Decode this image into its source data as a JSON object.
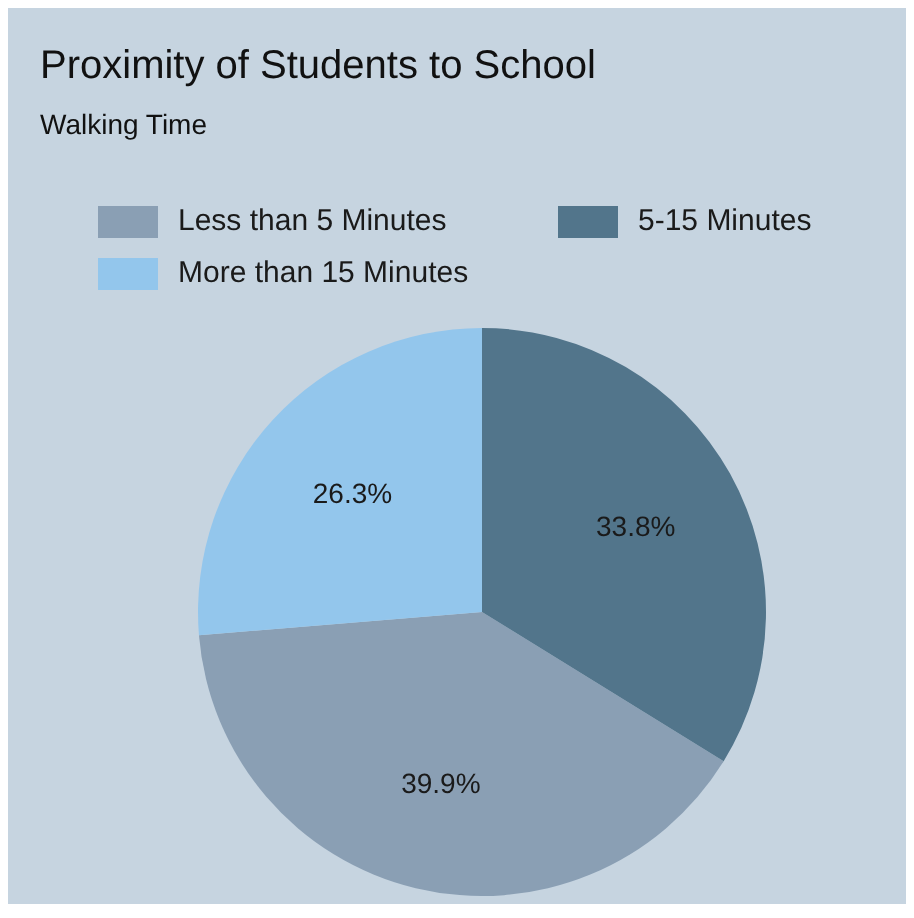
{
  "chart_data": {
    "type": "pie",
    "title": "Proximity of Students to School",
    "subtitle": "Walking Time",
    "categories": [
      "Less than 5 Minutes",
      "5-15 Minutes",
      "More than 15 Minutes"
    ],
    "values": [
      39.9,
      33.8,
      26.3
    ],
    "colors": [
      "#8a9fb4",
      "#52758b",
      "#93c6ec"
    ],
    "value_labels": [
      "39.9%",
      "33.8%",
      "26.3%"
    ],
    "legend": "top left"
  }
}
